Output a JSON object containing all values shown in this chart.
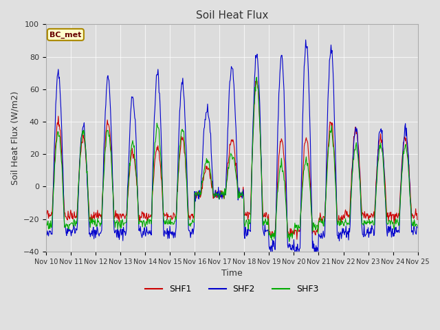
{
  "title": "Soil Heat Flux",
  "ylabel": "Soil Heat Flux (W/m2)",
  "xlabel": "Time",
  "ylim": [
    -40,
    100
  ],
  "background_color": "#e0e0e0",
  "plot_bg_color": "#dcdcdc",
  "colors": {
    "SHF1": "#cc0000",
    "SHF2": "#0000cc",
    "SHF3": "#00aa00"
  },
  "label_box_text": "BC_met",
  "label_box_facecolor": "#ffffcc",
  "label_box_edgecolor": "#aa8800",
  "tick_labels": [
    "Nov 10",
    "Nov 11",
    "Nov 12",
    "Nov 13",
    "Nov 14",
    "Nov 15",
    "Nov 16",
    "Nov 17",
    "Nov 18",
    "Nov 19",
    "Nov 20",
    "Nov 21",
    "Nov 22",
    "Nov 23",
    "Nov 24",
    "Nov 25"
  ],
  "num_days": 15,
  "hours_per_day": 24,
  "dt": 0.5,
  "day_peaks_shf1": [
    40,
    30,
    40,
    21,
    25,
    30,
    12,
    29,
    65,
    30,
    30,
    40,
    35,
    30,
    30
  ],
  "day_peaks_shf2": [
    70,
    37,
    67,
    56,
    70,
    65,
    48,
    74,
    81,
    80,
    89,
    85,
    35,
    35,
    35
  ],
  "day_peaks_shf3": [
    33,
    35,
    35,
    27,
    38,
    35,
    16,
    20,
    65,
    15,
    16,
    35,
    25,
    25,
    25
  ],
  "day_troughs_shf1": [
    -18,
    -18,
    -18,
    -18,
    -18,
    -18,
    -5,
    -5,
    -18,
    -28,
    -28,
    -20,
    -18,
    -18,
    -18
  ],
  "day_troughs_shf2": [
    -28,
    -28,
    -28,
    -28,
    -28,
    -28,
    -5,
    -5,
    -28,
    -38,
    -38,
    -30,
    -28,
    -28,
    -28
  ],
  "day_troughs_shf3": [
    -24,
    -22,
    -22,
    -22,
    -22,
    -22,
    -5,
    -5,
    -22,
    -30,
    -25,
    -22,
    -22,
    -22,
    -22
  ],
  "yticks": [
    -40,
    -20,
    0,
    20,
    40,
    60,
    80,
    100
  ]
}
